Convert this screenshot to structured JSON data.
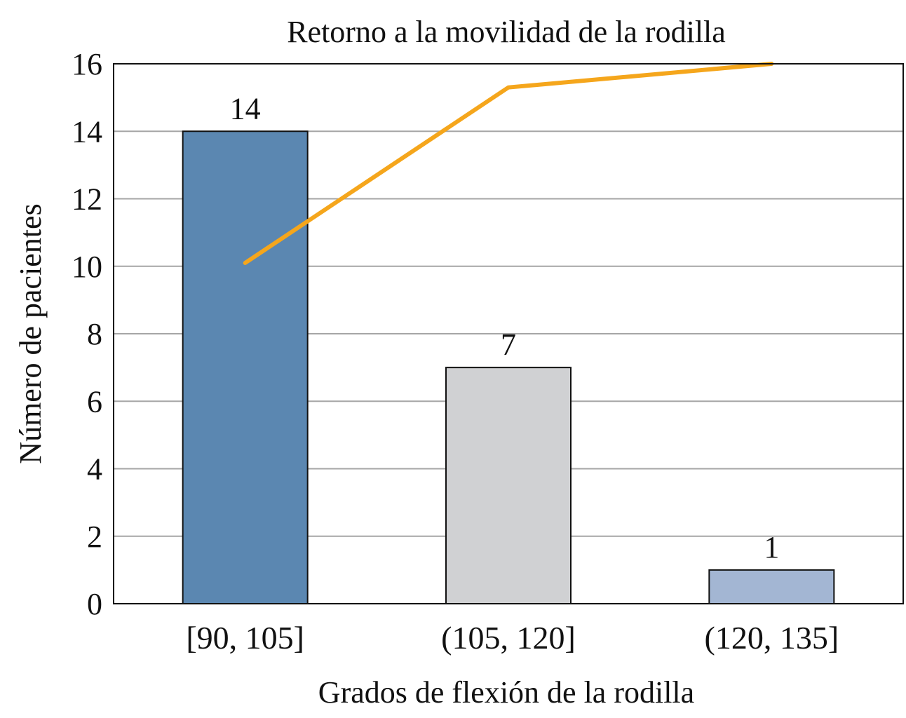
{
  "chart_data": {
    "type": "bar",
    "title": "Retorno a la movilidad de la rodilla",
    "xlabel": "Grados de flexión de la rodilla",
    "ylabel": "Número de pacientes",
    "categories": [
      "[90, 105]",
      "(105, 120]",
      "(120, 135]"
    ],
    "values": [
      14,
      7,
      1
    ],
    "data_labels": [
      "14",
      "7",
      "1"
    ],
    "bar_colors": [
      "#5b87b1",
      "#d0d1d3",
      "#a3b6d3"
    ],
    "line": {
      "type": "line",
      "values": [
        10.1,
        15.3,
        16.0
      ],
      "color": "#f5a61c"
    },
    "ylim": [
      0,
      16
    ],
    "yticks": [
      0,
      2,
      4,
      6,
      8,
      10,
      12,
      14,
      16
    ],
    "grid": true,
    "legend": "none"
  }
}
